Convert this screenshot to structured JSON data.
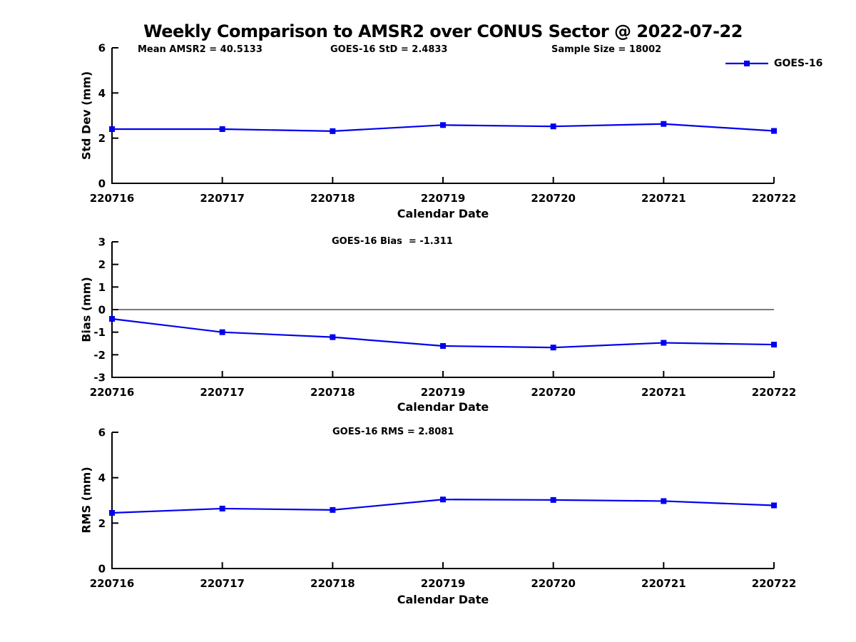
{
  "title": "Weekly Comparison to AMSR2 over CONUS Sector @ 2022-07-22",
  "legend": {
    "label": "GOES-16"
  },
  "colors": {
    "line": "#0000EE",
    "axis": "#000000",
    "zero_line": "#2b2b2b",
    "text": "#000000",
    "background": "#ffffff"
  },
  "chart_data": [
    {
      "type": "line",
      "panel": "std-dev",
      "annotations": [
        "Mean AMSR2 = 40.5133",
        "GOES-16 StD = 2.4833",
        "Sample Size = 18002"
      ],
      "ylabel": "Std Dev (mm)",
      "xlabel": "Calendar Date",
      "categories": [
        "220716",
        "220717",
        "220718",
        "220719",
        "220720",
        "220721",
        "220722"
      ],
      "series": [
        {
          "name": "GOES-16",
          "values": [
            2.4,
            2.4,
            2.31,
            2.58,
            2.52,
            2.63,
            2.32
          ]
        }
      ],
      "ylim": [
        0,
        6
      ],
      "yticks": [
        0,
        2,
        4,
        6
      ],
      "grid": false,
      "zero_line": false,
      "legend_position": "top-right"
    },
    {
      "type": "line",
      "panel": "bias",
      "annotations": [
        "GOES-16 Bias  = -1.311"
      ],
      "ylabel": "Bias (mm)",
      "xlabel": "Calendar Date",
      "categories": [
        "220716",
        "220717",
        "220718",
        "220719",
        "220720",
        "220721",
        "220722"
      ],
      "series": [
        {
          "name": "GOES-16",
          "values": [
            -0.41,
            -1.0,
            -1.22,
            -1.61,
            -1.68,
            -1.47,
            -1.55
          ]
        }
      ],
      "ylim": [
        -3,
        3
      ],
      "yticks": [
        -3,
        -2,
        -1,
        0,
        1,
        2,
        3
      ],
      "grid": false,
      "zero_line": true,
      "legend_position": "none"
    },
    {
      "type": "line",
      "panel": "rms",
      "annotations": [
        "GOES-16 RMS = 2.8081"
      ],
      "ylabel": "RMS (mm)",
      "xlabel": "Calendar Date",
      "categories": [
        "220716",
        "220717",
        "220718",
        "220719",
        "220720",
        "220721",
        "220722"
      ],
      "series": [
        {
          "name": "GOES-16",
          "values": [
            2.45,
            2.64,
            2.58,
            3.04,
            3.02,
            2.97,
            2.78
          ]
        }
      ],
      "ylim": [
        0,
        6
      ],
      "yticks": [
        0,
        2,
        4,
        6
      ],
      "grid": false,
      "zero_line": false,
      "legend_position": "none"
    }
  ]
}
